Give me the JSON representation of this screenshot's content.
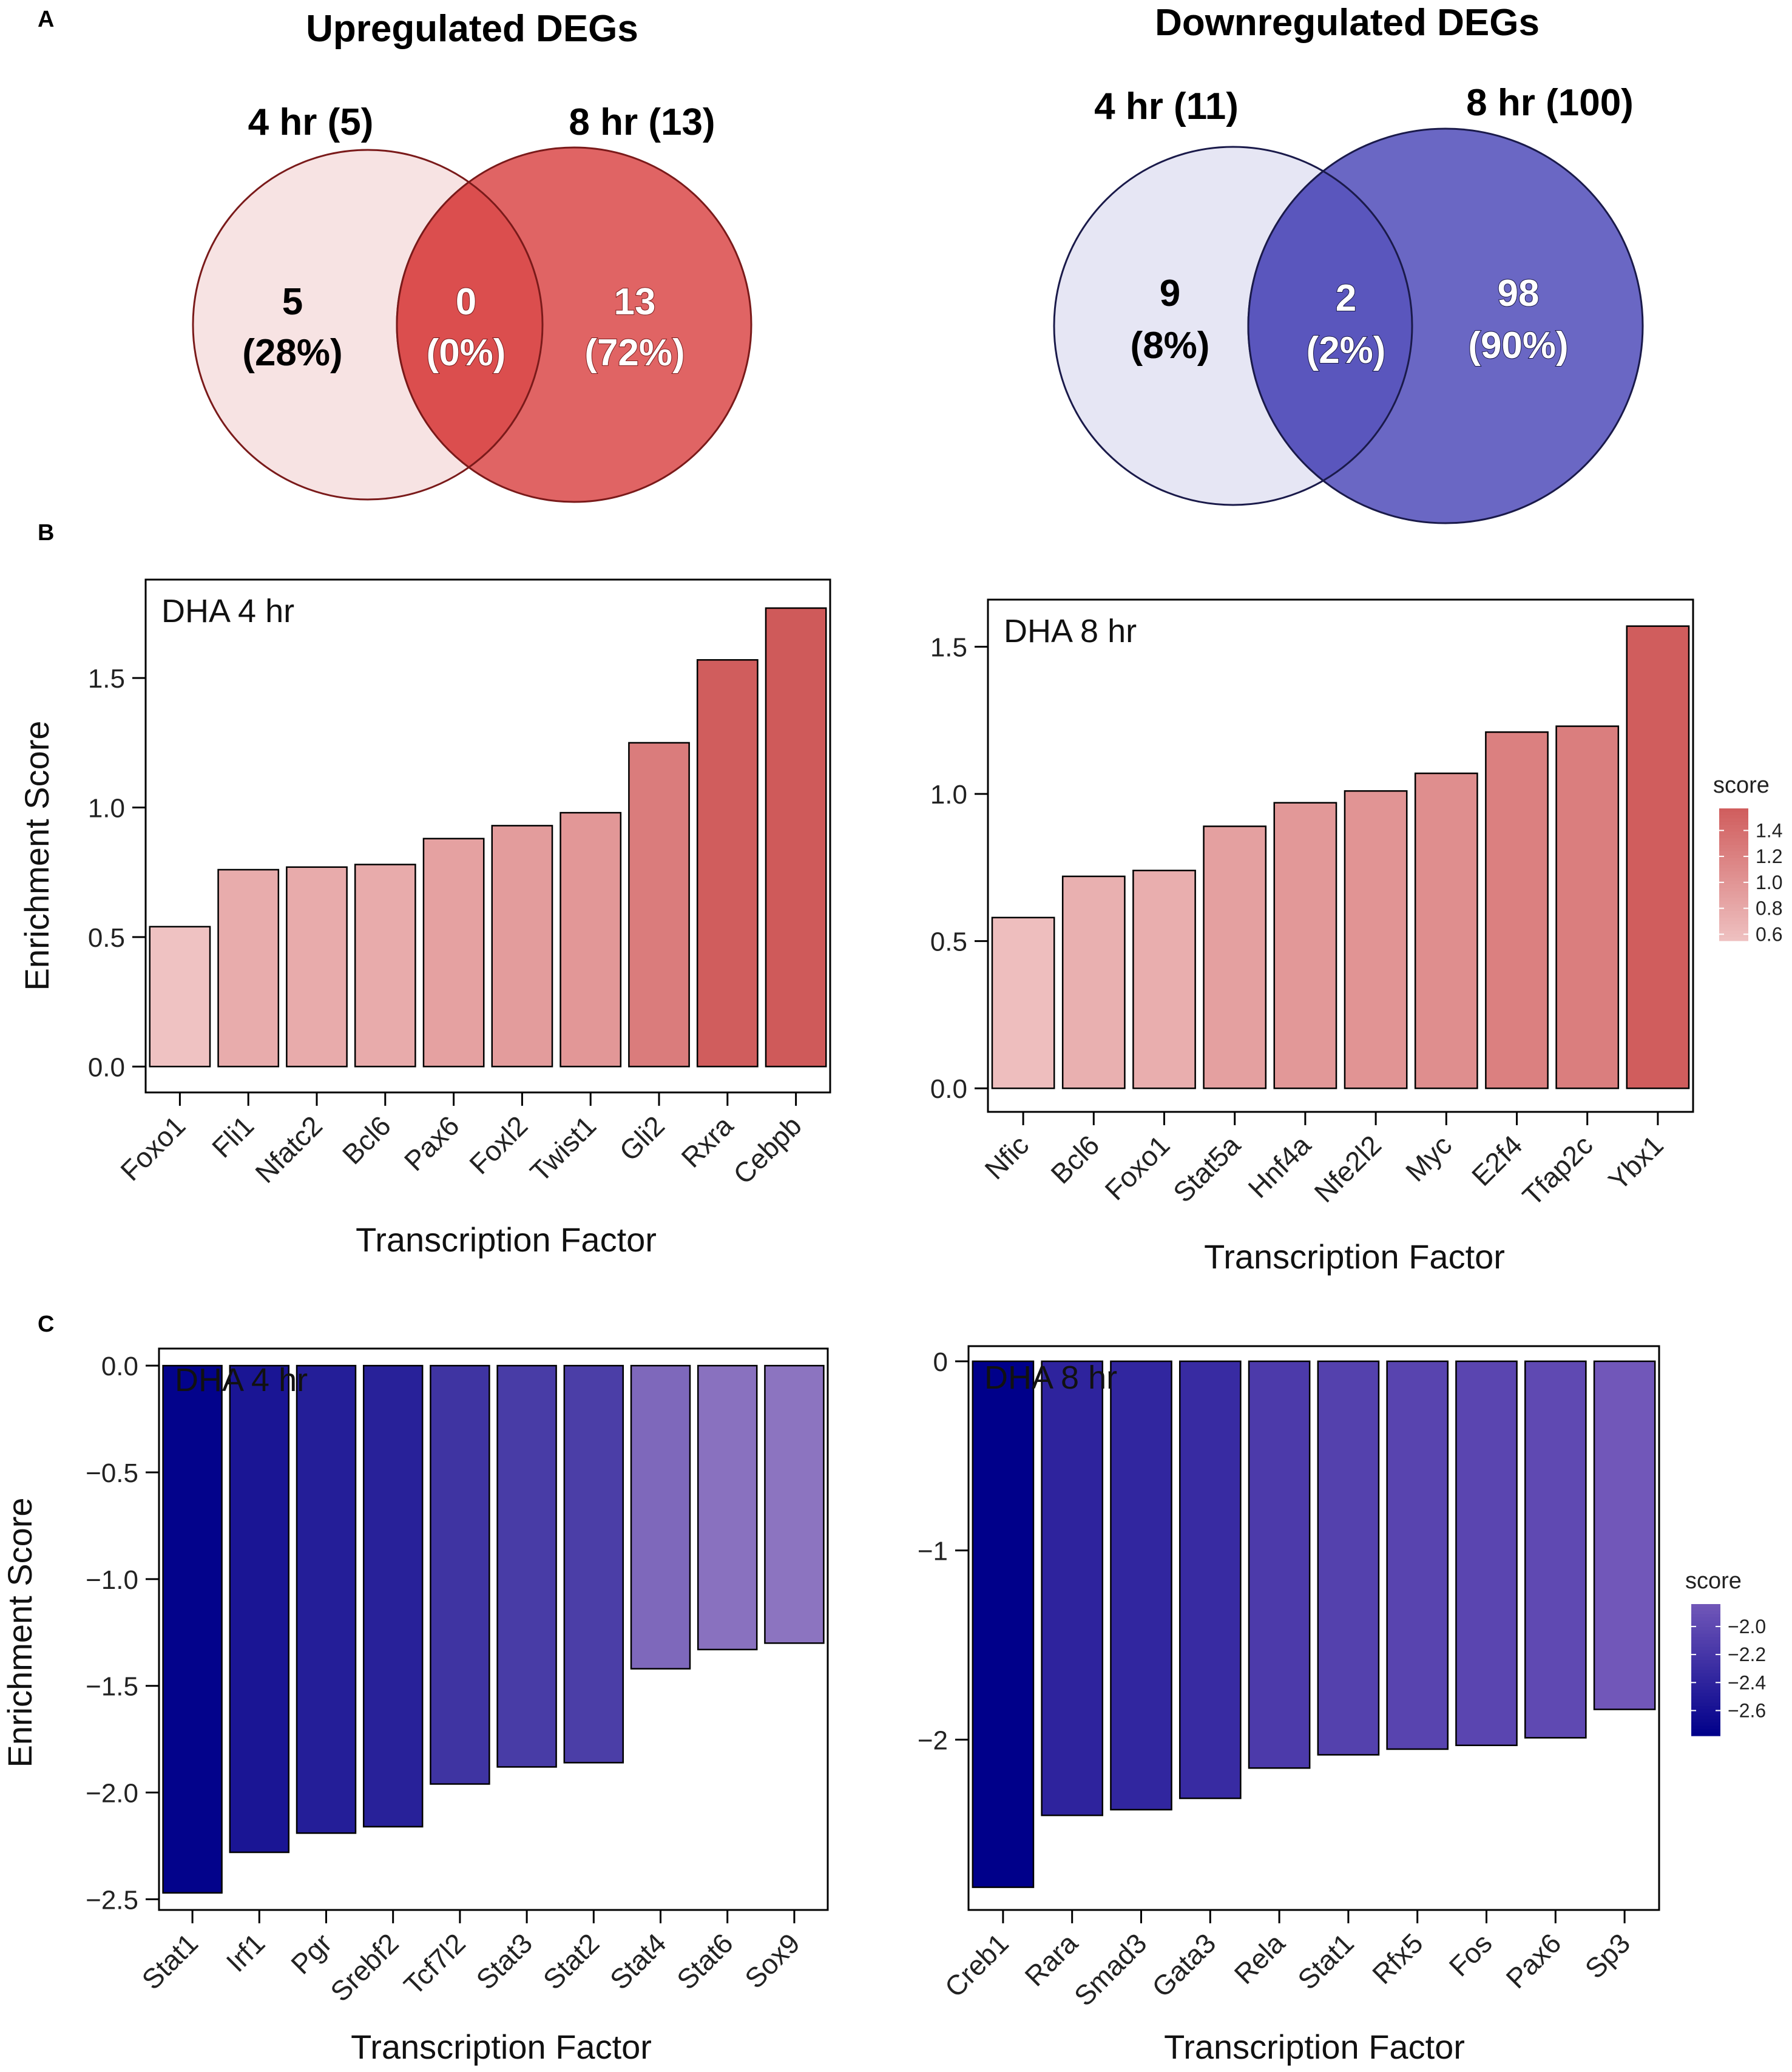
{
  "panel_labels": {
    "a": "A",
    "b": "B",
    "c": "C"
  },
  "venn": [
    {
      "title": "Upregulated DEGs",
      "left_label": "4 hr (5)",
      "right_label": "8 hr (13)",
      "left_count": "5",
      "left_pct": "(28%)",
      "overlap_count": "0",
      "overlap_pct": "(0%)",
      "right_count": "13",
      "right_pct": "(72%)",
      "colors": {
        "left_fill": "#f7e3e3",
        "right_fill": "#e06464",
        "overlap_fill": "#db4e4e",
        "stroke": "#7a1a1a"
      }
    },
    {
      "title": "Downregulated DEGs",
      "left_label": "4 hr (11)",
      "right_label": "8 hr (100)",
      "left_count": "9",
      "left_pct": "(8%)",
      "overlap_count": "2",
      "overlap_pct": "(2%)",
      "right_count": "98",
      "right_pct": "(90%)",
      "colors": {
        "left_fill": "#e6e6f4",
        "right_fill": "#6a67c4",
        "overlap_fill": "#5a56bd",
        "stroke": "#1a1a4a"
      }
    }
  ],
  "chart_data": [
    {
      "type": "bar",
      "panel": "B",
      "title": "DHA 4 hr",
      "xlabel": "Transcription Factor",
      "ylabel": "Enrichment Score",
      "categories": [
        "Foxo1",
        "Fli1",
        "Nfatc2",
        "Bcl6",
        "Pax6",
        "Foxl2",
        "Twist1",
        "Gli2",
        "Rxra",
        "Cebpb"
      ],
      "values": [
        0.54,
        0.76,
        0.77,
        0.78,
        0.88,
        0.93,
        0.98,
        1.25,
        1.57,
        1.77
      ],
      "ylim": [
        -0.1,
        1.88
      ],
      "yticks": [
        0.0,
        0.5,
        1.0,
        1.5
      ],
      "ytick_labels": [
        "0.0",
        "0.5",
        "1.0",
        "1.5"
      ],
      "color_range": [
        0.5,
        1.6
      ],
      "low_color": "#f0c6c6",
      "high_color": "#cf5a5a"
    },
    {
      "type": "bar",
      "panel": "B",
      "title": "DHA 8 hr",
      "xlabel": "Transcription Factor",
      "ylabel": "",
      "categories": [
        "Nfic",
        "Bcl6",
        "Foxo1",
        "Stat5a",
        "Hnf4a",
        "Nfe2l2",
        "Myc",
        "E2f4",
        "Tfap2c",
        "Ybx1"
      ],
      "values": [
        0.58,
        0.72,
        0.74,
        0.89,
        0.97,
        1.01,
        1.07,
        1.21,
        1.23,
        1.57
      ],
      "ylim": [
        -0.08,
        1.66
      ],
      "yticks": [
        0.0,
        0.5,
        1.0,
        1.5
      ],
      "ytick_labels": [
        "0.0",
        "0.5",
        "1.0",
        "1.5"
      ],
      "color_range": [
        0.5,
        1.6
      ],
      "low_color": "#f0c6c6",
      "high_color": "#cf5a5a",
      "legend": {
        "title": "score",
        "ticks": [
          1.4,
          1.2,
          1.0,
          0.8,
          0.6
        ],
        "tick_labels": [
          "1.4",
          "1.2",
          "1.0",
          "0.8",
          "0.6"
        ],
        "range": [
          0.55,
          1.57
        ]
      }
    },
    {
      "type": "bar",
      "panel": "C",
      "title": "DHA 4 hr",
      "xlabel": "Transcription Factor",
      "ylabel": "Enrichment Score",
      "categories": [
        "Stat1",
        "Irf1",
        "Pgr",
        "Srebf2",
        "Tcf7l2",
        "Stat3",
        "Stat2",
        "Stat4",
        "Stat6",
        "Sox9"
      ],
      "values": [
        -2.47,
        -2.28,
        -2.19,
        -2.16,
        -1.96,
        -1.88,
        -1.86,
        -1.42,
        -1.33,
        -1.3
      ],
      "ylim": [
        -2.55,
        0.08
      ],
      "yticks": [
        0.0,
        -0.5,
        -1.0,
        -1.5,
        -2.0,
        -2.5
      ],
      "ytick_labels": [
        "0.0",
        "−0.5",
        "−1.0",
        "−1.5",
        "−2.0",
        "−2.5"
      ],
      "color_range": [
        -2.5,
        -1.3
      ],
      "low_color": "#00008a",
      "high_color": "#8c74c0"
    },
    {
      "type": "bar",
      "panel": "C",
      "title": "DHA 8 hr",
      "xlabel": "Transcription Factor",
      "ylabel": "",
      "categories": [
        "Creb1",
        "Rara",
        "Smad3",
        "Gata3",
        "Rela",
        "Stat1",
        "Rfx5",
        "Fos",
        "Pax6",
        "Sp3"
      ],
      "values": [
        -2.78,
        -2.4,
        -2.37,
        -2.31,
        -2.15,
        -2.08,
        -2.05,
        -2.03,
        -1.99,
        -1.84
      ],
      "ylim": [
        -2.9,
        0.08
      ],
      "yticks": [
        0,
        -1,
        -2
      ],
      "ytick_labels": [
        "0",
        "−1",
        "−2"
      ],
      "color_range": [
        -2.78,
        -1.84
      ],
      "low_color": "#00008a",
      "high_color": "#7157b9",
      "legend": {
        "title": "score",
        "ticks": [
          -2.0,
          -2.2,
          -2.4,
          -2.6
        ],
        "tick_labels": [
          "−2.0",
          "−2.2",
          "−2.4",
          "−2.6"
        ],
        "range": [
          -2.78,
          -1.84
        ]
      }
    }
  ]
}
